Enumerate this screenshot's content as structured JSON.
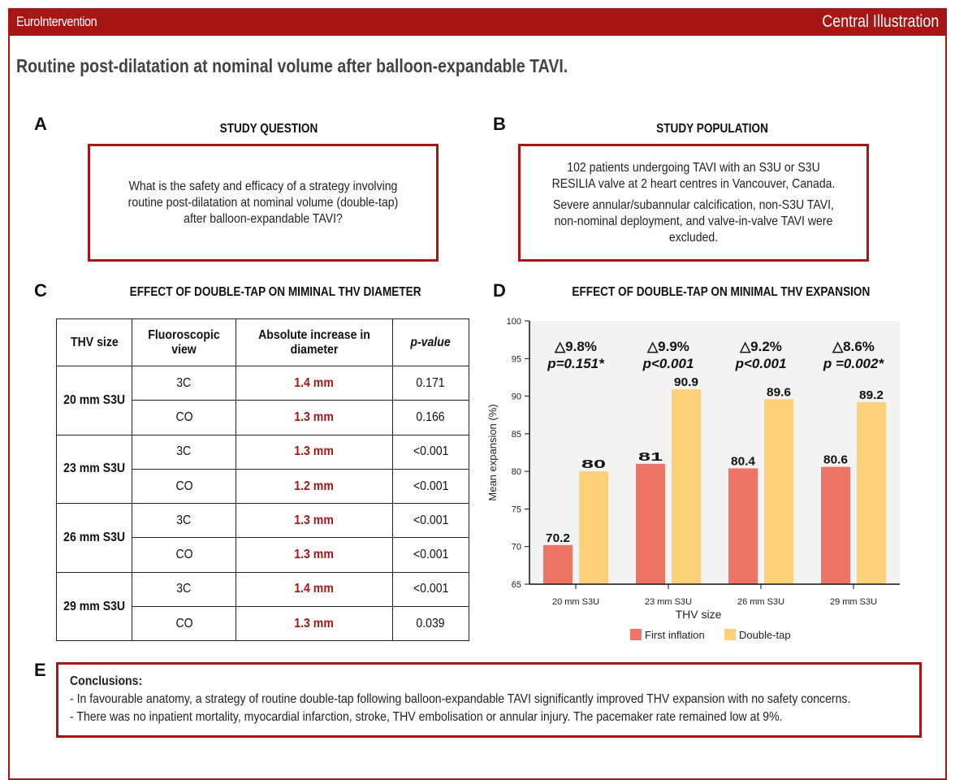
{
  "header": {
    "journal": "EuroIntervention",
    "label": "Central Illustration"
  },
  "title": "Routine post-dilatation at nominal volume after balloon-expandable TAVI.",
  "panels": {
    "a": {
      "letter": "A",
      "heading": "STUDY QUESTION",
      "text": "What is the safety and efficacy of a strategy involving routine post-dilatation at nominal volume (double-tap) after balloon-expandable TAVI?"
    },
    "b": {
      "letter": "B",
      "heading": "STUDY POPULATION",
      "text1": "102 patients undergoing TAVI with an S3U or S3U RESILIA valve at 2 heart centres in Vancouver, Canada.",
      "text2": "Severe annular/subannular calcification, non-S3U TAVI, non-nominal deployment, and valve-in-valve TAVI were excluded."
    },
    "c": {
      "letter": "C",
      "heading": "EFFECT OF DOUBLE-TAP ON MIMINAL THV DIAMETER",
      "columns": [
        "THV size",
        "Fluoroscopic view",
        "Absolute increase in diameter",
        "p-value"
      ],
      "rows": [
        {
          "size": "20 mm S3U",
          "views": [
            {
              "view": "3C",
              "inc": "1.4 mm",
              "p": "0.171"
            },
            {
              "view": "CO",
              "inc": "1.3 mm",
              "p": "0.166"
            }
          ]
        },
        {
          "size": "23 mm S3U",
          "views": [
            {
              "view": "3C",
              "inc": "1.3 mm",
              "p": "<0.001"
            },
            {
              "view": "CO",
              "inc": "1.2 mm",
              "p": "<0.001"
            }
          ]
        },
        {
          "size": "26 mm S3U",
          "views": [
            {
              "view": "3C",
              "inc": "1.3 mm",
              "p": "<0.001"
            },
            {
              "view": "CO",
              "inc": "1.3 mm",
              "p": "<0.001"
            }
          ]
        },
        {
          "size": "29 mm S3U",
          "views": [
            {
              "view": "3C",
              "inc": "1.4 mm",
              "p": "<0.001"
            },
            {
              "view": "CO",
              "inc": "1.3 mm",
              "p": "0.039"
            }
          ]
        }
      ]
    },
    "d": {
      "letter": "D",
      "heading": "EFFECT OF DOUBLE-TAP ON MINIMAL THV EXPANSION"
    },
    "e": {
      "letter": "E",
      "heading": "Conclusions:",
      "lines": [
        "- In favourable anatomy, a strategy of routine double-tap following balloon-expandable TAVI significantly improved THV expansion with no safety concerns.",
        "- There was no inpatient mortality, myocardial infarction, stroke, THV embolisation or annular injury. The pacemaker rate remained low at 9%."
      ]
    }
  },
  "chart_data": {
    "type": "bar",
    "title": "EFFECT OF DOUBLE-TAP ON MINIMAL THV EXPANSION",
    "categories": [
      "20 mm S3U",
      "23 mm S3U",
      "26 mm S3U",
      "29 mm S3U"
    ],
    "series": [
      {
        "name": "First inflation",
        "color": "#ee7466",
        "values": [
          70.2,
          81,
          80.4,
          80.6
        ]
      },
      {
        "name": "Double-tap",
        "color": "#fdd07a",
        "values": [
          80,
          90.9,
          89.6,
          89.2
        ]
      }
    ],
    "annotations": [
      {
        "delta": "△9.8%",
        "p": "p=0.151*"
      },
      {
        "delta": "△9.9%",
        "p": "p<0.001"
      },
      {
        "delta": "△9.2%",
        "p": "p<0.001"
      },
      {
        "delta": "△8.6%",
        "p": "p =0.002*"
      }
    ],
    "xlabel": "THV size",
    "ylabel": "Mean expansion (%)",
    "ylim": [
      65,
      100
    ],
    "yticks": [
      65,
      70,
      75,
      80,
      85,
      90,
      95,
      100
    ],
    "legend": "bottom"
  },
  "colors": {
    "brand": "#a81515"
  }
}
